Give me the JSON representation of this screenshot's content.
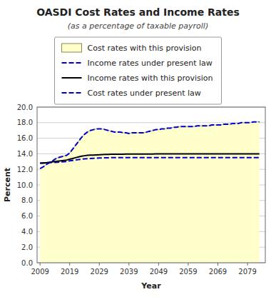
{
  "chart_data": {
    "type": "line",
    "title": "OASDI Cost Rates and Income Rates",
    "subtitle": "(as a percentage of taxable payroll)",
    "x_label": "Year",
    "y_label": "Percent",
    "xlim": [
      2008,
      2085
    ],
    "ylim": [
      0.0,
      20.0
    ],
    "xticks": [
      2009,
      2019,
      2029,
      2039,
      2049,
      2059,
      2069,
      2079
    ],
    "yticks": [
      {
        "value": 0.0,
        "label": "0.0"
      },
      {
        "value": 2.0,
        "label": "2.0"
      },
      {
        "value": 4.0,
        "label": "4.0"
      },
      {
        "value": 6.0,
        "label": "6.0"
      },
      {
        "value": 8.0,
        "label": "8.0"
      },
      {
        "value": 10.0,
        "label": "10.0"
      },
      {
        "value": 12.0,
        "label": "12.0"
      },
      {
        "value": 14.0,
        "label": "14.0"
      },
      {
        "value": 16.0,
        "label": "16.0"
      },
      {
        "value": 18.0,
        "label": "18.0"
      },
      {
        "value": 20.0,
        "label": "20.0"
      }
    ],
    "grid": true,
    "legend": "top",
    "x": [
      2009,
      2010,
      2011,
      2012,
      2013,
      2014,
      2015,
      2016,
      2017,
      2018,
      2019,
      2020,
      2021,
      2022,
      2023,
      2024,
      2025,
      2026,
      2027,
      2028,
      2029,
      2030,
      2031,
      2032,
      2033,
      2034,
      2035,
      2036,
      2037,
      2038,
      2039,
      2040,
      2041,
      2042,
      2043,
      2044,
      2045,
      2046,
      2047,
      2048,
      2049,
      2050,
      2051,
      2052,
      2053,
      2054,
      2055,
      2056,
      2057,
      2058,
      2059,
      2060,
      2061,
      2062,
      2063,
      2064,
      2065,
      2066,
      2067,
      2068,
      2069,
      2070,
      2071,
      2072,
      2073,
      2074,
      2075,
      2076,
      2077,
      2078,
      2079,
      2080,
      2081,
      2082,
      2083
    ],
    "series": [
      {
        "name": "Cost rates with this provision",
        "type": "area",
        "color": "#ffffcc",
        "values": [
          12.1,
          12.3,
          12.6,
          12.8,
          13.0,
          13.3,
          13.5,
          13.6,
          13.7,
          13.8,
          14.1,
          14.6,
          15.1,
          15.6,
          16.1,
          16.5,
          16.8,
          17.0,
          17.1,
          17.2,
          17.2,
          17.2,
          17.1,
          17.0,
          16.9,
          16.8,
          16.8,
          16.8,
          16.7,
          16.7,
          16.6,
          16.7,
          16.7,
          16.7,
          16.7,
          16.7,
          16.8,
          16.9,
          17.0,
          17.1,
          17.1,
          17.2,
          17.2,
          17.3,
          17.3,
          17.4,
          17.4,
          17.5,
          17.5,
          17.5,
          17.5,
          17.5,
          17.5,
          17.6,
          17.6,
          17.6,
          17.6,
          17.6,
          17.7,
          17.7,
          17.7,
          17.7,
          17.8,
          17.8,
          17.8,
          17.9,
          17.9,
          17.9,
          18.0,
          18.0,
          18.0,
          18.0,
          18.1,
          18.1,
          18.1
        ]
      },
      {
        "name": "Income rates under present law",
        "type": "line",
        "color": "#0000cc",
        "line_style": "dashed",
        "values": [
          12.8,
          12.82,
          12.84,
          12.86,
          12.88,
          12.9,
          12.92,
          12.95,
          12.98,
          13.01,
          13.1,
          13.15,
          13.2,
          13.25,
          13.3,
          13.35,
          13.38,
          13.4,
          13.42,
          13.44,
          13.46,
          13.47,
          13.48,
          13.49,
          13.5,
          13.5,
          13.5,
          13.5,
          13.5,
          13.5,
          13.5,
          13.5,
          13.5,
          13.5,
          13.5,
          13.5,
          13.5,
          13.5,
          13.5,
          13.5,
          13.5,
          13.5,
          13.5,
          13.5,
          13.5,
          13.5,
          13.5,
          13.5,
          13.5,
          13.5,
          13.5,
          13.5,
          13.5,
          13.5,
          13.5,
          13.5,
          13.5,
          13.5,
          13.5,
          13.5,
          13.5,
          13.5,
          13.5,
          13.5,
          13.5,
          13.5,
          13.5,
          13.5,
          13.5,
          13.5,
          13.5,
          13.5,
          13.5,
          13.5,
          13.5
        ]
      },
      {
        "name": "Income rates with this provision",
        "type": "line",
        "color": "#000000",
        "line_style": "solid",
        "values": [
          12.8,
          12.8,
          12.85,
          12.9,
          12.95,
          13.0,
          13.05,
          13.1,
          13.15,
          13.2,
          13.3,
          13.4,
          13.5,
          13.6,
          13.7,
          13.75,
          13.8,
          13.82,
          13.84,
          13.86,
          13.88,
          13.9,
          13.92,
          13.93,
          13.94,
          13.95,
          13.95,
          13.95,
          13.95,
          13.96,
          13.96,
          13.96,
          13.96,
          13.97,
          13.97,
          13.97,
          13.97,
          13.97,
          13.97,
          13.98,
          13.98,
          13.98,
          13.98,
          13.99,
          13.99,
          13.99,
          13.99,
          14.0,
          14.0,
          14.0,
          14.0,
          14.0,
          14.0,
          14.0,
          14.0,
          14.0,
          14.0,
          14.0,
          14.0,
          14.0,
          14.0,
          14.0,
          14.0,
          14.0,
          14.0,
          14.0,
          14.0,
          14.0,
          14.0,
          14.0,
          14.0,
          14.0,
          14.0,
          14.0,
          14.0
        ]
      },
      {
        "name": "Cost rates under present law",
        "type": "line",
        "color": "#0000cc",
        "line_style": "dashed",
        "values": [
          12.1,
          12.3,
          12.6,
          12.8,
          13.0,
          13.3,
          13.5,
          13.6,
          13.7,
          13.8,
          14.1,
          14.6,
          15.1,
          15.6,
          16.1,
          16.5,
          16.8,
          17.0,
          17.1,
          17.2,
          17.2,
          17.2,
          17.1,
          17.0,
          16.9,
          16.8,
          16.8,
          16.8,
          16.7,
          16.7,
          16.6,
          16.7,
          16.7,
          16.7,
          16.7,
          16.7,
          16.8,
          16.9,
          17.0,
          17.1,
          17.1,
          17.2,
          17.2,
          17.3,
          17.3,
          17.4,
          17.4,
          17.5,
          17.5,
          17.5,
          17.5,
          17.5,
          17.5,
          17.6,
          17.6,
          17.6,
          17.6,
          17.6,
          17.7,
          17.7,
          17.7,
          17.7,
          17.8,
          17.8,
          17.8,
          17.9,
          17.9,
          17.9,
          18.0,
          18.0,
          18.0,
          18.0,
          18.1,
          18.1,
          18.1
        ]
      }
    ]
  }
}
